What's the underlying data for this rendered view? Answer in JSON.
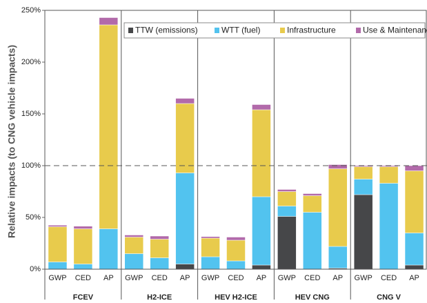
{
  "chart_data": {
    "type": "stacked_bar",
    "y_label": "Relative impacts (to CNG vehicle impacts)",
    "groups": [
      "FCEV",
      "H2-ICE",
      "HEV H2-ICE",
      "HEV CNG",
      "CNG V"
    ],
    "categories": [
      "GWP",
      "CED",
      "AP",
      "GWP",
      "CED",
      "AP",
      "GWP",
      "CED",
      "AP",
      "GWP",
      "CED",
      "AP",
      "GWP",
      "CED",
      "AP"
    ],
    "series": [
      {
        "name": "TTW (emissions)",
        "color": "#464749",
        "values": [
          0,
          0,
          0,
          0,
          0,
          5,
          0,
          0,
          4,
          51,
          0,
          1,
          72,
          0,
          4
        ]
      },
      {
        "name": "WTT (fuel)",
        "color": "#52c3ef",
        "values": [
          7,
          5,
          39,
          15,
          11,
          88,
          12,
          8,
          66,
          10,
          55,
          21,
          15,
          83,
          31
        ]
      },
      {
        "name": "Infrastructure",
        "color": "#e8cb4c",
        "values": [
          34,
          34,
          197,
          16,
          18,
          67,
          18,
          20,
          84,
          14,
          16,
          75,
          12,
          16,
          60
        ]
      },
      {
        "name": "Use & Maintenance",
        "color": "#b26aaa",
        "values": [
          1.5,
          2.5,
          7,
          2,
          3,
          5,
          1.5,
          3,
          5,
          2,
          2,
          4,
          1,
          1,
          5
        ]
      }
    ],
    "ylim": [
      0,
      250
    ],
    "yticks": [
      {
        "value": 0,
        "label": "0%"
      },
      {
        "value": 50,
        "label": "50%"
      },
      {
        "value": 100,
        "label": "100%"
      },
      {
        "value": 150,
        "label": "150%"
      },
      {
        "value": 200,
        "label": "200%"
      },
      {
        "value": 250,
        "label": "250%"
      }
    ],
    "reference_line": 100,
    "legend": "top-right"
  }
}
